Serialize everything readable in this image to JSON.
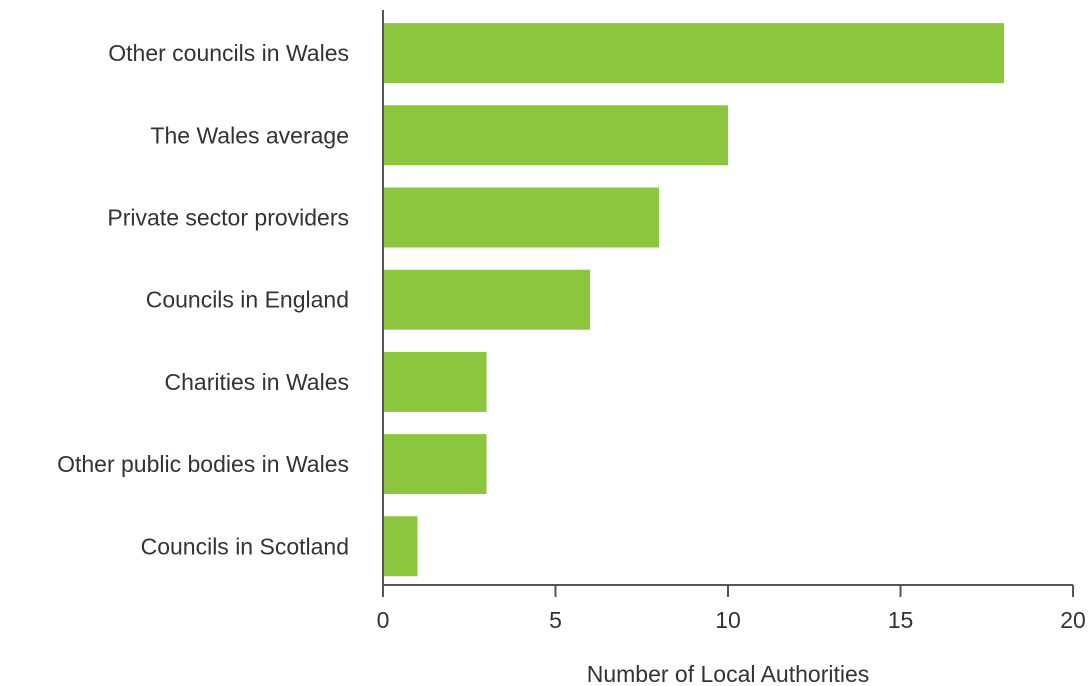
{
  "chart_data": {
    "type": "bar",
    "orientation": "horizontal",
    "categories": [
      "Other councils in Wales",
      "The Wales average",
      "Private sector providers",
      "Councils in England",
      "Charities in Wales",
      "Other public bodies in Wales",
      "Councils in Scotland"
    ],
    "values": [
      18,
      10,
      8,
      6,
      3,
      3,
      1
    ],
    "xlabel": "Number of Local Authorities",
    "ylabel": "",
    "xlim": [
      0,
      20
    ],
    "xticks": [
      "0",
      "5",
      "10",
      "15",
      "20"
    ],
    "grid": false,
    "legend": "none",
    "bar_color": "#8cc63f",
    "axis_color": "#555555",
    "text_color": "#333333"
  }
}
